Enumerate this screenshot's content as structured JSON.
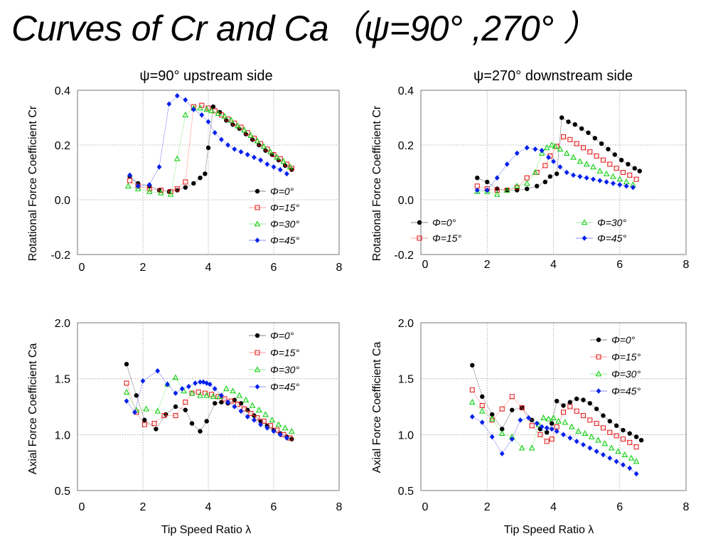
{
  "slide": {
    "title": "Curves of Cr and Ca（ψ=90° ,270° ）"
  },
  "markers": {
    "series_symbols": [
      "dot",
      "open-square",
      "open-triangle",
      "diamond"
    ],
    "series_colors": [
      "#000000",
      "#e01010",
      "#00cc00",
      "#0020ee"
    ],
    "line_colors": [
      "#888888",
      "#ff9a9a",
      "#99ee99",
      "#8c8cff"
    ]
  },
  "chart_data": [
    {
      "type": "scatter",
      "title": "ψ=90°  upstream side",
      "ylabel": "Rotational Force Coefficient Cr",
      "xlabel": "",
      "xlim": [
        0,
        8
      ],
      "ylim": [
        -0.2,
        0.4
      ],
      "xticks": [
        "0",
        "2",
        "4",
        "6",
        "8"
      ],
      "yticks": [
        "0.4",
        "0.2",
        "0.0",
        "-0.2"
      ],
      "grid": true,
      "legend": "bottom-right",
      "series": [
        {
          "name": "Φ=0°",
          "x": [
            1.6,
            1.85,
            2.2,
            2.5,
            2.8,
            3.05,
            3.3,
            3.55,
            3.75,
            3.9,
            4.0,
            4.15,
            4.35,
            4.55,
            4.75,
            4.95,
            5.15,
            5.35,
            5.55,
            5.75,
            5.95,
            6.15,
            6.35,
            6.55
          ],
          "y": [
            0.085,
            0.06,
            0.05,
            0.035,
            0.03,
            0.035,
            0.045,
            0.06,
            0.08,
            0.095,
            0.19,
            0.34,
            0.32,
            0.29,
            0.275,
            0.26,
            0.24,
            0.22,
            0.2,
            0.18,
            0.165,
            0.145,
            0.125,
            0.11
          ]
        },
        {
          "name": "Φ=15°",
          "x": [
            1.6,
            1.85,
            2.2,
            2.55,
            2.85,
            3.05,
            3.3,
            3.55,
            3.8,
            4.0,
            4.2,
            4.4,
            4.6,
            4.8,
            5.0,
            5.2,
            5.4,
            5.6,
            5.8,
            6.0,
            6.2,
            6.4,
            6.55
          ],
          "y": [
            0.07,
            0.05,
            0.04,
            0.035,
            0.03,
            0.04,
            0.065,
            0.34,
            0.345,
            0.335,
            0.325,
            0.31,
            0.295,
            0.28,
            0.265,
            0.245,
            0.225,
            0.205,
            0.185,
            0.165,
            0.15,
            0.13,
            0.115
          ]
        },
        {
          "name": "Φ=30°",
          "x": [
            1.55,
            1.85,
            2.2,
            2.55,
            2.85,
            3.05,
            3.3,
            3.55,
            3.75,
            3.95,
            4.1,
            4.3,
            4.5,
            4.7,
            4.9,
            5.1,
            5.3,
            5.5,
            5.7,
            5.9,
            6.1,
            6.3,
            6.5
          ],
          "y": [
            0.05,
            0.04,
            0.03,
            0.025,
            0.02,
            0.15,
            0.31,
            0.335,
            0.335,
            0.33,
            0.325,
            0.315,
            0.305,
            0.29,
            0.27,
            0.255,
            0.235,
            0.215,
            0.195,
            0.175,
            0.155,
            0.14,
            0.12
          ]
        },
        {
          "name": "Φ=45°",
          "x": [
            1.6,
            1.85,
            2.2,
            2.5,
            2.8,
            3.05,
            3.3,
            3.55,
            3.8,
            4.0,
            4.2,
            4.4,
            4.6,
            4.8,
            5.0,
            5.2,
            5.4,
            5.6,
            5.8,
            6.0,
            6.2,
            6.4
          ],
          "y": [
            0.09,
            0.05,
            0.055,
            0.12,
            0.35,
            0.38,
            0.365,
            0.33,
            0.31,
            0.285,
            0.245,
            0.22,
            0.2,
            0.185,
            0.175,
            0.165,
            0.155,
            0.145,
            0.13,
            0.12,
            0.11,
            0.095
          ]
        }
      ]
    },
    {
      "type": "scatter",
      "title": "ψ=270°  downstream side",
      "ylabel": "Rotational Force Coefficient Cr",
      "xlabel": "",
      "xlim": [
        0,
        8
      ],
      "ylim": [
        -0.2,
        0.4
      ],
      "xticks": [
        "0",
        "2",
        "4",
        "6",
        "8"
      ],
      "yticks": [
        "0.4",
        "0.2",
        "0.0",
        "-0.2"
      ],
      "grid": true,
      "legend": "bottom",
      "series": [
        {
          "name": "Φ=0°",
          "x": [
            1.7,
            2.0,
            2.3,
            2.6,
            2.9,
            3.2,
            3.5,
            3.75,
            3.9,
            4.1,
            4.25,
            4.45,
            4.65,
            4.85,
            5.05,
            5.25,
            5.45,
            5.65,
            5.85,
            6.05,
            6.25,
            6.45,
            6.6
          ],
          "y": [
            0.08,
            0.065,
            0.04,
            0.035,
            0.035,
            0.04,
            0.05,
            0.065,
            0.085,
            0.095,
            0.3,
            0.285,
            0.275,
            0.26,
            0.245,
            0.225,
            0.205,
            0.185,
            0.165,
            0.145,
            0.13,
            0.115,
            0.105
          ]
        },
        {
          "name": "Φ=15°",
          "x": [
            1.7,
            2.0,
            2.3,
            2.6,
            2.9,
            3.2,
            3.5,
            3.75,
            3.9,
            4.1,
            4.3,
            4.5,
            4.7,
            4.9,
            5.1,
            5.3,
            5.5,
            5.7,
            5.9,
            6.1,
            6.3,
            6.5
          ],
          "y": [
            0.05,
            0.04,
            0.035,
            0.035,
            0.045,
            0.08,
            0.1,
            0.125,
            0.16,
            0.195,
            0.23,
            0.22,
            0.205,
            0.19,
            0.175,
            0.16,
            0.145,
            0.13,
            0.115,
            0.1,
            0.09,
            0.075
          ]
        },
        {
          "name": "Φ=30°",
          "x": [
            1.7,
            2.0,
            2.3,
            2.6,
            2.9,
            3.2,
            3.45,
            3.65,
            3.8,
            3.95,
            4.05,
            4.2,
            4.4,
            4.6,
            4.8,
            5.0,
            5.2,
            5.4,
            5.6,
            5.8,
            6.0,
            6.2,
            6.4
          ],
          "y": [
            0.03,
            0.03,
            0.02,
            0.035,
            0.05,
            0.06,
            0.1,
            0.17,
            0.19,
            0.2,
            0.195,
            0.185,
            0.17,
            0.155,
            0.14,
            0.13,
            0.12,
            0.105,
            0.095,
            0.085,
            0.075,
            0.065,
            0.055
          ]
        },
        {
          "name": "Φ=45°",
          "x": [
            1.7,
            2.0,
            2.3,
            2.6,
            2.9,
            3.2,
            3.45,
            3.65,
            3.85,
            4.0,
            4.2,
            4.4,
            4.6,
            4.8,
            5.0,
            5.2,
            5.4,
            5.6,
            5.8,
            6.0,
            6.2,
            6.4
          ],
          "y": [
            0.035,
            0.035,
            0.08,
            0.13,
            0.17,
            0.19,
            0.185,
            0.18,
            0.155,
            0.14,
            0.12,
            0.1,
            0.09,
            0.085,
            0.08,
            0.075,
            0.07,
            0.065,
            0.06,
            0.055,
            0.05,
            0.045
          ]
        }
      ]
    },
    {
      "type": "scatter",
      "title": "",
      "ylabel": "Axial Force Coefficient Ca",
      "xlabel": "Tip Speed Ratio λ",
      "xlim": [
        0,
        8
      ],
      "ylim": [
        0.5,
        2.0
      ],
      "xticks": [
        "0",
        "2",
        "4",
        "6",
        "8"
      ],
      "yticks": [
        "2.0",
        "1.5",
        "1.0",
        "0.5"
      ],
      "grid": true,
      "legend": "top-right",
      "series": [
        {
          "name": "Φ=0°",
          "x": [
            1.5,
            1.8,
            2.05,
            2.4,
            2.7,
            3.0,
            3.3,
            3.5,
            3.75,
            3.95,
            4.2,
            4.4,
            4.6,
            4.8,
            5.0,
            5.2,
            5.4,
            5.6,
            5.8,
            6.0,
            6.2,
            6.4,
            6.55
          ],
          "y": [
            1.63,
            1.35,
            1.13,
            1.05,
            1.18,
            1.25,
            1.22,
            1.1,
            1.03,
            1.12,
            1.28,
            1.29,
            1.28,
            1.31,
            1.28,
            1.22,
            1.17,
            1.12,
            1.08,
            1.04,
            1.01,
            0.98,
            0.96
          ]
        },
        {
          "name": "Φ=15°",
          "x": [
            1.5,
            1.8,
            2.05,
            2.35,
            2.65,
            3.0,
            3.3,
            3.5,
            3.7,
            3.9,
            4.1,
            4.3,
            4.5,
            4.7,
            4.9,
            5.1,
            5.3,
            5.5,
            5.7,
            5.9,
            6.1,
            6.3,
            6.5
          ],
          "y": [
            1.46,
            1.2,
            1.09,
            1.1,
            1.17,
            1.17,
            1.29,
            1.37,
            1.38,
            1.37,
            1.36,
            1.34,
            1.32,
            1.3,
            1.27,
            1.23,
            1.19,
            1.15,
            1.12,
            1.08,
            1.04,
            1.0,
            0.97
          ]
        },
        {
          "name": "Φ=30°",
          "x": [
            1.5,
            1.8,
            2.1,
            2.45,
            2.75,
            3.0,
            3.25,
            3.5,
            3.75,
            3.95,
            4.15,
            4.35,
            4.55,
            4.75,
            4.95,
            5.15,
            5.35,
            5.55,
            5.75,
            5.95,
            6.15,
            6.35,
            6.55
          ],
          "y": [
            1.38,
            1.22,
            1.23,
            1.21,
            1.45,
            1.51,
            1.39,
            1.37,
            1.35,
            1.35,
            1.34,
            1.34,
            1.41,
            1.39,
            1.35,
            1.31,
            1.26,
            1.22,
            1.18,
            1.13,
            1.09,
            1.06,
            1.03
          ]
        },
        {
          "name": "Φ=45°",
          "x": [
            1.5,
            1.75,
            2.0,
            2.45,
            2.75,
            3.0,
            3.2,
            3.4,
            3.6,
            3.75,
            3.85,
            3.95,
            4.05,
            4.2,
            4.4,
            4.6,
            4.8,
            5.0,
            5.2,
            5.4,
            5.6,
            5.8,
            6.0,
            6.2,
            6.4
          ],
          "y": [
            1.3,
            1.2,
            1.48,
            1.57,
            1.45,
            1.37,
            1.41,
            1.43,
            1.46,
            1.47,
            1.47,
            1.46,
            1.45,
            1.41,
            1.35,
            1.29,
            1.25,
            1.21,
            1.16,
            1.13,
            1.09,
            1.06,
            1.03,
            1.0,
            0.97
          ]
        }
      ]
    },
    {
      "type": "scatter",
      "title": "",
      "ylabel": "Axial Force Coefficient Ca",
      "xlabel": "Tip Speed Ratio λ",
      "xlim": [
        0,
        8
      ],
      "ylim": [
        0.5,
        2.0
      ],
      "xticks": [
        "0",
        "2",
        "4",
        "6",
        "8"
      ],
      "yticks": [
        "2.0",
        "1.5",
        "1.0",
        "0.5"
      ],
      "grid": true,
      "legend": "top-right",
      "series": [
        {
          "name": "Φ=0°",
          "x": [
            1.55,
            1.85,
            2.15,
            2.45,
            2.75,
            3.05,
            3.35,
            3.6,
            3.8,
            3.95,
            4.1,
            4.3,
            4.5,
            4.7,
            4.9,
            5.1,
            5.3,
            5.5,
            5.7,
            5.9,
            6.1,
            6.3,
            6.5,
            6.65
          ],
          "y": [
            1.62,
            1.34,
            1.18,
            1.05,
            1.22,
            1.24,
            1.13,
            1.05,
            1.02,
            1.1,
            1.3,
            1.26,
            1.29,
            1.32,
            1.31,
            1.28,
            1.23,
            1.17,
            1.12,
            1.08,
            1.04,
            1.01,
            0.98,
            0.95
          ]
        },
        {
          "name": "Φ=15°",
          "x": [
            1.55,
            1.85,
            2.15,
            2.45,
            2.75,
            3.05,
            3.35,
            3.6,
            3.8,
            3.95,
            4.1,
            4.3,
            4.5,
            4.7,
            4.9,
            5.1,
            5.3,
            5.5,
            5.7,
            5.9,
            6.1,
            6.3,
            6.5
          ],
          "y": [
            1.4,
            1.26,
            1.13,
            1.23,
            1.34,
            1.24,
            1.08,
            1.0,
            0.94,
            0.96,
            1.07,
            1.2,
            1.25,
            1.21,
            1.17,
            1.13,
            1.1,
            1.06,
            1.02,
            0.99,
            0.96,
            0.93,
            0.89
          ]
        },
        {
          "name": "Φ=30°",
          "x": [
            1.55,
            1.85,
            2.15,
            2.45,
            2.75,
            3.05,
            3.35,
            3.55,
            3.7,
            3.85,
            4.0,
            4.15,
            4.35,
            4.55,
            4.75,
            4.95,
            5.15,
            5.35,
            5.55,
            5.75,
            5.95,
            6.15,
            6.35,
            6.5
          ],
          "y": [
            1.29,
            1.21,
            1.14,
            1.01,
            0.98,
            0.88,
            0.88,
            1.09,
            1.15,
            1.14,
            1.15,
            1.12,
            1.11,
            1.07,
            1.03,
            1.01,
            0.98,
            0.95,
            0.92,
            0.88,
            0.85,
            0.82,
            0.79,
            0.76
          ]
        },
        {
          "name": "Φ=45°",
          "x": [
            1.55,
            1.85,
            2.15,
            2.45,
            2.75,
            3.0,
            3.25,
            3.5,
            3.65,
            3.8,
            3.95,
            4.1,
            4.3,
            4.5,
            4.7,
            4.9,
            5.1,
            5.3,
            5.5,
            5.7,
            5.9,
            6.1,
            6.3,
            6.5
          ],
          "y": [
            1.16,
            1.11,
            0.98,
            0.83,
            0.96,
            1.13,
            1.15,
            1.1,
            1.07,
            1.06,
            1.05,
            1.03,
            1.0,
            0.97,
            0.94,
            0.91,
            0.88,
            0.85,
            0.82,
            0.79,
            0.76,
            0.73,
            0.7,
            0.65
          ]
        }
      ]
    }
  ]
}
